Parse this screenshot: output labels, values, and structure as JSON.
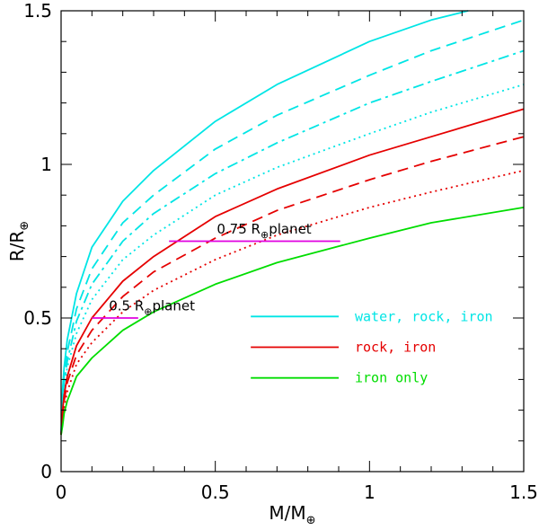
{
  "chart_data": {
    "type": "line",
    "xlabel_main": "M/M",
    "xlabel_sub": "⊕",
    "ylabel_main": "R/R",
    "ylabel_sub": "⊕",
    "xlim": [
      0,
      1.5
    ],
    "ylim": [
      0,
      1.5
    ],
    "xticks": [
      {
        "value": 0,
        "label": "0"
      },
      {
        "value": 0.5,
        "label": "0.5"
      },
      {
        "value": 1,
        "label": "1"
      },
      {
        "value": 1.5,
        "label": "1.5"
      }
    ],
    "yticks": [
      {
        "value": 0,
        "label": "0"
      },
      {
        "value": 0.5,
        "label": "0.5"
      },
      {
        "value": 1,
        "label": "1"
      },
      {
        "value": 1.5,
        "label": "1.5"
      }
    ],
    "x_minor_step": 0.1,
    "y_minor_step": 0.1,
    "series": [
      {
        "name": "water-rock-iron-1",
        "group": "water, rock, iron",
        "color": "#00e5e5",
        "dash": "solid",
        "x": [
          0.005,
          0.01,
          0.02,
          0.05,
          0.1,
          0.2,
          0.3,
          0.5,
          0.7,
          1.0,
          1.2,
          1.32
        ],
        "y": [
          0.27,
          0.34,
          0.43,
          0.58,
          0.73,
          0.88,
          0.98,
          1.14,
          1.26,
          1.4,
          1.47,
          1.5
        ]
      },
      {
        "name": "water-rock-iron-2",
        "group": "water, rock, iron",
        "color": "#00e5e5",
        "dash": "dashed",
        "x": [
          0.005,
          0.01,
          0.02,
          0.05,
          0.1,
          0.2,
          0.3,
          0.5,
          0.7,
          1.0,
          1.2,
          1.5
        ],
        "y": [
          0.25,
          0.31,
          0.39,
          0.53,
          0.66,
          0.81,
          0.9,
          1.05,
          1.16,
          1.29,
          1.37,
          1.47
        ]
      },
      {
        "name": "water-rock-iron-3",
        "group": "water, rock, iron",
        "color": "#00e5e5",
        "dash": "dashdot",
        "x": [
          0.005,
          0.01,
          0.02,
          0.05,
          0.1,
          0.2,
          0.3,
          0.5,
          0.7,
          1.0,
          1.2,
          1.5
        ],
        "y": [
          0.23,
          0.29,
          0.36,
          0.49,
          0.61,
          0.75,
          0.84,
          0.97,
          1.07,
          1.2,
          1.27,
          1.37
        ]
      },
      {
        "name": "water-rock-iron-4",
        "group": "water, rock, iron",
        "color": "#00e5e5",
        "dash": "dotted",
        "x": [
          0.005,
          0.01,
          0.02,
          0.05,
          0.1,
          0.2,
          0.3,
          0.5,
          0.7,
          1.0,
          1.2,
          1.5
        ],
        "y": [
          0.21,
          0.27,
          0.34,
          0.45,
          0.56,
          0.69,
          0.77,
          0.9,
          0.99,
          1.1,
          1.17,
          1.26
        ]
      },
      {
        "name": "rock-iron-1",
        "group": "rock, iron",
        "color": "#e50000",
        "dash": "solid",
        "x": [
          0.005,
          0.01,
          0.02,
          0.05,
          0.1,
          0.2,
          0.3,
          0.5,
          0.7,
          1.0,
          1.2,
          1.5
        ],
        "y": [
          0.2,
          0.25,
          0.31,
          0.41,
          0.5,
          0.62,
          0.7,
          0.83,
          0.92,
          1.03,
          1.09,
          1.18
        ]
      },
      {
        "name": "rock-iron-2",
        "group": "rock, iron",
        "color": "#e50000",
        "dash": "dashed",
        "x": [
          0.005,
          0.01,
          0.02,
          0.05,
          0.1,
          0.2,
          0.3,
          0.5,
          0.7,
          1.0,
          1.2,
          1.5
        ],
        "y": [
          0.18,
          0.23,
          0.29,
          0.38,
          0.46,
          0.57,
          0.65,
          0.76,
          0.85,
          0.95,
          1.01,
          1.09
        ]
      },
      {
        "name": "rock-iron-3",
        "group": "rock, iron",
        "color": "#e50000",
        "dash": "dotted",
        "x": [
          0.005,
          0.01,
          0.02,
          0.05,
          0.1,
          0.2,
          0.3,
          0.5,
          0.7,
          1.0,
          1.2,
          1.5
        ],
        "y": [
          0.17,
          0.21,
          0.26,
          0.35,
          0.42,
          0.52,
          0.59,
          0.69,
          0.77,
          0.86,
          0.91,
          0.98
        ]
      },
      {
        "name": "iron-only",
        "group": "iron only",
        "color": "#00dd00",
        "dash": "solid",
        "x": [
          0.005,
          0.01,
          0.02,
          0.05,
          0.1,
          0.2,
          0.3,
          0.5,
          0.7,
          1.0,
          1.2,
          1.5
        ],
        "y": [
          0.15,
          0.19,
          0.23,
          0.31,
          0.37,
          0.46,
          0.52,
          0.61,
          0.68,
          0.76,
          0.81,
          0.86
        ]
      }
    ],
    "reference_lines": [
      {
        "name": "half-earth-radius",
        "color": "#e000e0",
        "y": 0.5,
        "x_start": 0.1,
        "x_end": 0.25
      },
      {
        "name": "three-quarter-earth-radius",
        "color": "#e000e0",
        "y": 0.75,
        "x_start": 0.35,
        "x_end": 0.905
      }
    ],
    "annotations": [
      {
        "name": "half-planet-label",
        "prefix": "0.5 R",
        "sub": "⊕",
        "suffix": "planet",
        "x": 0.155,
        "y": 0.525
      },
      {
        "name": "three-quarter-planet-label",
        "prefix": "0.75 R",
        "sub": "⊕",
        "suffix": "planet",
        "x": 0.505,
        "y": 0.775
      }
    ],
    "legend": [
      {
        "label": "water, rock, iron",
        "color": "#00e5e5",
        "x1": 0.615,
        "x2": 0.9,
        "y": 0.505
      },
      {
        "label": "rock, iron",
        "color": "#e50000",
        "x1": 0.615,
        "x2": 0.9,
        "y": 0.405
      },
      {
        "label": "iron only",
        "color": "#00dd00",
        "x1": 0.615,
        "x2": 0.9,
        "y": 0.305
      }
    ]
  }
}
